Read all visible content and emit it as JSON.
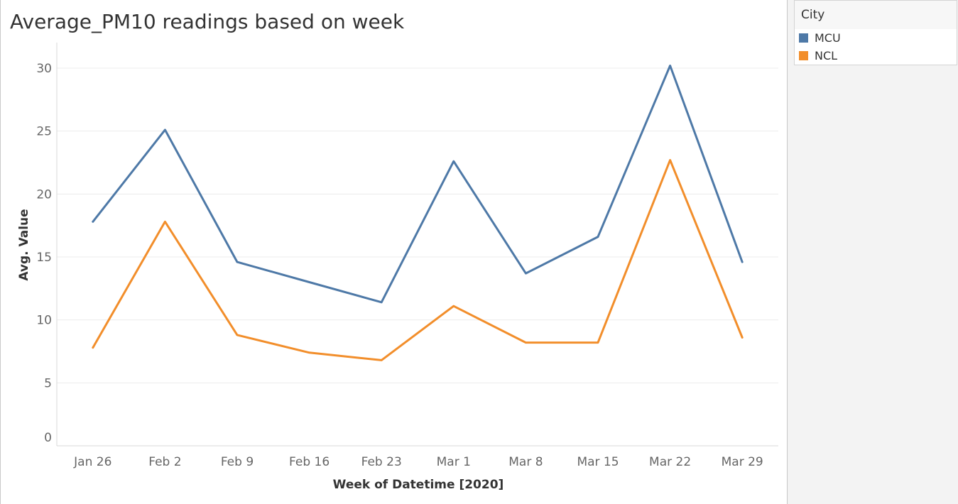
{
  "chart_data": {
    "type": "line",
    "title": "Average_PM10 readings based on week",
    "xlabel": "Week of Datetime [2020]",
    "ylabel": "Avg. Value",
    "categories": [
      "Jan 26",
      "Feb 2",
      "Feb 9",
      "Feb 16",
      "Feb 23",
      "Mar 1",
      "Mar 8",
      "Mar 15",
      "Mar 22",
      "Mar 29"
    ],
    "ylim": [
      0,
      32
    ],
    "yticks": [
      0,
      5,
      10,
      15,
      20,
      25,
      30
    ],
    "grid": true,
    "legend_position": "right",
    "series": [
      {
        "name": "MCU",
        "color": "#4e79a7",
        "values": [
          17.8,
          25.1,
          14.6,
          13.0,
          11.4,
          22.6,
          13.7,
          16.6,
          30.2,
          14.6
        ]
      },
      {
        "name": "NCL",
        "color": "#f28e2b",
        "values": [
          7.8,
          17.8,
          8.8,
          7.4,
          6.8,
          11.1,
          8.2,
          8.2,
          22.7,
          8.6
        ]
      }
    ]
  },
  "legend": {
    "title": "City",
    "items": [
      {
        "label": "MCU",
        "color": "#4e79a7"
      },
      {
        "label": "NCL",
        "color": "#f28e2b"
      }
    ]
  }
}
